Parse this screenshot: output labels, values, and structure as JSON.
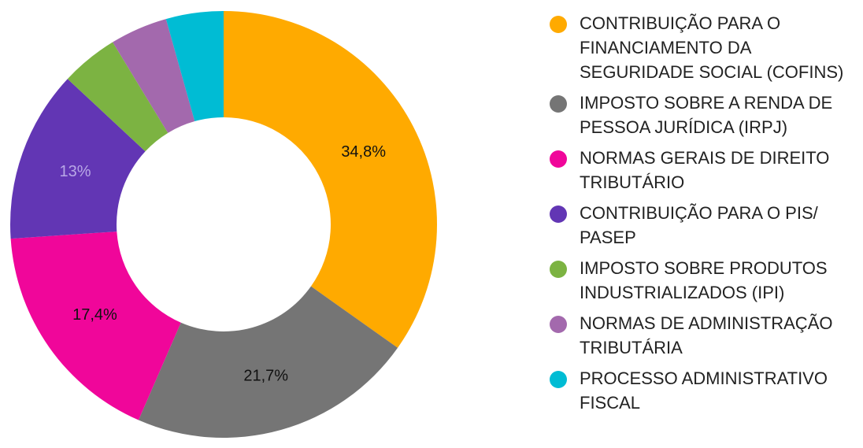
{
  "chart_data": {
    "type": "pie",
    "donut": true,
    "title": "",
    "legend_position": "right",
    "slices": [
      {
        "name": "CONTRIBUIÇÃO PARA O FINANCIAMENTO DA SEGURIDADE SOCIAL (COFINS)",
        "value": 34.8,
        "label": "34,8%",
        "color": "#FFAA00",
        "label_color": "#111111"
      },
      {
        "name": "IMPOSTO SOBRE A RENDA DE PESSOA JURÍDICA (IRPJ)",
        "value": 21.7,
        "label": "21,7%",
        "color": "#757575",
        "label_color": "#111111"
      },
      {
        "name": "NORMAS GERAIS DE DIREITO TRIBUTÁRIO",
        "value": 17.4,
        "label": "17,4%",
        "color": "#F0069A",
        "label_color": "#111111"
      },
      {
        "name": "CONTRIBUIÇÃO PARA O PIS/ PASEP",
        "value": 13.0,
        "label": "13%",
        "color": "#6236B4",
        "label_color": "#B9A8E6"
      },
      {
        "name": "IMPOSTO SOBRE PRODUTOS INDUSTRIALIZADOS (IPI)",
        "value": 4.35,
        "label": "",
        "color": "#7CB342",
        "label_color": "#111111"
      },
      {
        "name": "NORMAS DE ADMINISTRAÇÃO TRIBUTÁRIA",
        "value": 4.35,
        "label": "",
        "color": "#A369AD",
        "label_color": "#111111"
      },
      {
        "name": "PROCESSO ADMINISTRATIVO FISCAL",
        "value": 4.35,
        "label": "",
        "color": "#00BCD4",
        "label_color": "#111111"
      }
    ]
  }
}
